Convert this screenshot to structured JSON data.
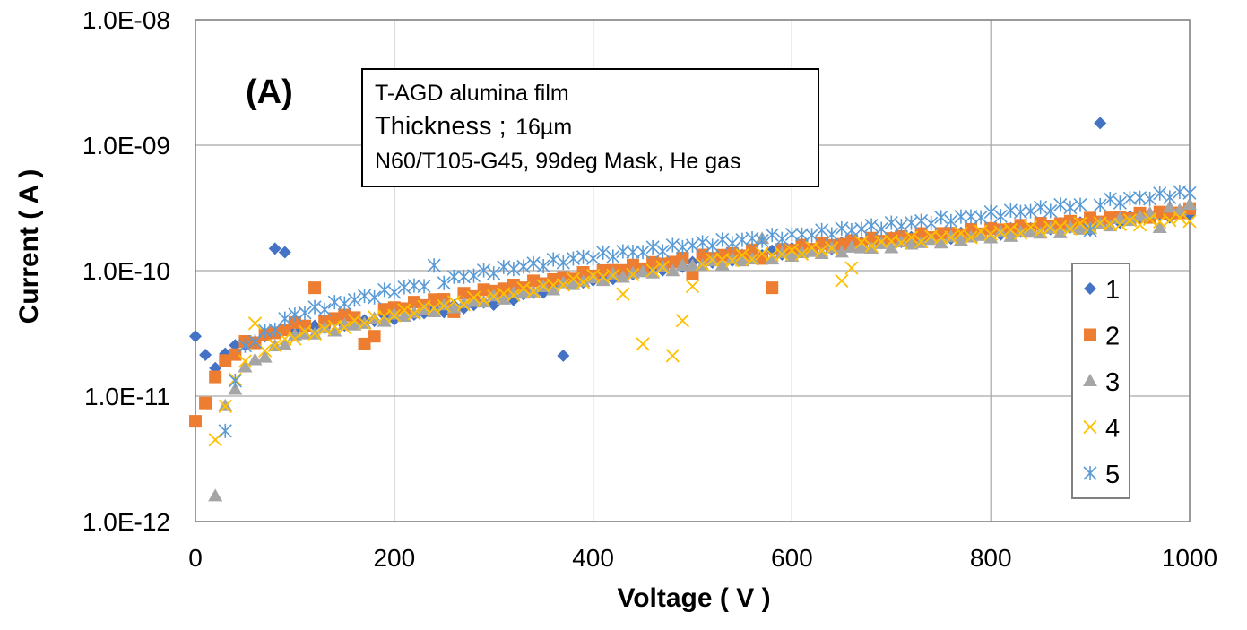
{
  "chart_data": {
    "type": "scatter",
    "panel_label": "(A)",
    "xlabel": "Voltage ( V )",
    "ylabel": "Current ( A )",
    "xlim": [
      0,
      1000
    ],
    "ylim": [
      1e-12,
      1e-08
    ],
    "y_scale": "log",
    "grid": true,
    "legend_position": "right",
    "x_ticks": [
      "0",
      "200",
      "400",
      "600",
      "800",
      "1000"
    ],
    "y_ticks": [
      "1.0E-12",
      "1.0E-11",
      "1.0E-10",
      "1.0E-09",
      "1.0E-08"
    ],
    "annotation": {
      "line1": "T-AGD alumina film",
      "line2_main": "Thickness ;",
      "line2_value": "16µm",
      "line3": "N60/T105-G45, 99deg Mask, He gas"
    },
    "series": [
      {
        "name": "1",
        "marker": "diamond",
        "color": "#4472C4",
        "base": [
          [
            0,
            3e-11
          ],
          [
            20,
            1.6e-11
          ],
          [
            30,
            2.3e-11
          ],
          [
            50,
            2.6e-11
          ],
          [
            100,
            3.4e-11
          ],
          [
            200,
            4.3e-11
          ],
          [
            300,
            5.6e-11
          ],
          [
            400,
            8.5e-11
          ],
          [
            500,
            1.15e-10
          ],
          [
            600,
            1.45e-10
          ],
          [
            700,
            1.75e-10
          ],
          [
            800,
            2e-10
          ],
          [
            900,
            2.4e-10
          ],
          [
            1000,
            2.9e-10
          ]
        ],
        "outliers": [
          [
            80,
            1.5e-10
          ],
          [
            90,
            1.4e-10
          ],
          [
            370,
            2.1e-11
          ],
          [
            910,
            1.5e-09
          ],
          [
            900,
            2.1e-10
          ]
        ]
      },
      {
        "name": "2",
        "marker": "square",
        "color": "#ED7D31",
        "base": [
          [
            0,
            6e-12
          ],
          [
            20,
            1.4e-11
          ],
          [
            30,
            1.9e-11
          ],
          [
            50,
            2.6e-11
          ],
          [
            100,
            3.7e-11
          ],
          [
            200,
            5e-11
          ],
          [
            300,
            7e-11
          ],
          [
            400,
            9.5e-11
          ],
          [
            500,
            1.25e-10
          ],
          [
            600,
            1.5e-10
          ],
          [
            700,
            1.8e-10
          ],
          [
            800,
            2.1e-10
          ],
          [
            900,
            2.5e-10
          ],
          [
            1000,
            3e-10
          ]
        ],
        "outliers": [
          [
            120,
            7.3e-11
          ],
          [
            170,
            2.6e-11
          ],
          [
            180,
            3e-11
          ],
          [
            260,
            4.7e-11
          ],
          [
            580,
            7.3e-11
          ],
          [
            500,
            9.5e-11
          ],
          [
            570,
            1.25e-10
          ]
        ]
      },
      {
        "name": "3",
        "marker": "triangle",
        "color": "#A5A5A5",
        "base": [
          [
            20,
            8e-12
          ],
          [
            30,
            8e-12
          ],
          [
            50,
            1.7e-11
          ],
          [
            100,
            3e-11
          ],
          [
            200,
            4.3e-11
          ],
          [
            300,
            6e-11
          ],
          [
            400,
            8.5e-11
          ],
          [
            500,
            1.1e-10
          ],
          [
            600,
            1.35e-10
          ],
          [
            700,
            1.6e-10
          ],
          [
            800,
            1.9e-10
          ],
          [
            900,
            2.2e-10
          ],
          [
            1000,
            3.3e-10
          ]
        ],
        "outliers": [
          [
            20,
            1.6e-12
          ],
          [
            570,
            1.8e-10
          ],
          [
            970,
            2.2e-10
          ]
        ]
      },
      {
        "name": "4",
        "marker": "x",
        "color": "#FFC000",
        "base": [
          [
            20,
            4.5e-12
          ],
          [
            30,
            8.5e-12
          ],
          [
            50,
            2e-11
          ],
          [
            100,
            3e-11
          ],
          [
            200,
            4.5e-11
          ],
          [
            300,
            6.2e-11
          ],
          [
            400,
            8.8e-11
          ],
          [
            500,
            1.15e-10
          ],
          [
            600,
            1.4e-10
          ],
          [
            700,
            1.7e-10
          ],
          [
            800,
            2e-10
          ],
          [
            900,
            2.3e-10
          ],
          [
            1000,
            2.6e-10
          ]
        ],
        "outliers": [
          [
            430,
            6.5e-11
          ],
          [
            450,
            2.6e-11
          ],
          [
            480,
            2.1e-11
          ],
          [
            490,
            4e-11
          ],
          [
            500,
            7.5e-11
          ],
          [
            650,
            8.3e-11
          ],
          [
            660,
            1.05e-10
          ],
          [
            60,
            3.8e-11
          ]
        ]
      },
      {
        "name": "5",
        "marker": "star",
        "color": "#5B9BD5",
        "base": [
          [
            30,
            5.5e-12
          ],
          [
            40,
            1.3e-11
          ],
          [
            50,
            2.5e-11
          ],
          [
            100,
            4.5e-11
          ],
          [
            200,
            7e-11
          ],
          [
            300,
            1e-10
          ],
          [
            400,
            1.3e-10
          ],
          [
            500,
            1.6e-10
          ],
          [
            600,
            1.9e-10
          ],
          [
            700,
            2.3e-10
          ],
          [
            800,
            2.8e-10
          ],
          [
            900,
            3.4e-10
          ],
          [
            1000,
            4.2e-10
          ]
        ],
        "outliers": [
          [
            240,
            1.1e-10
          ],
          [
            900,
            2.1e-10
          ]
        ]
      }
    ]
  }
}
